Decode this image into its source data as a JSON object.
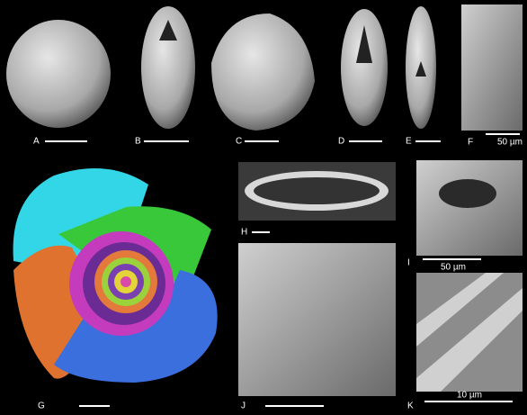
{
  "panels": [
    {
      "label": "A"
    },
    {
      "label": "B"
    },
    {
      "label": "C"
    },
    {
      "label": "D"
    },
    {
      "label": "E"
    },
    {
      "label": "F",
      "scale": "50 µm"
    },
    {
      "label": "G"
    },
    {
      "label": "H"
    },
    {
      "label": "I",
      "scale": "50 µm"
    },
    {
      "label": "J"
    },
    {
      "label": "K",
      "scale": "10 µm"
    }
  ]
}
